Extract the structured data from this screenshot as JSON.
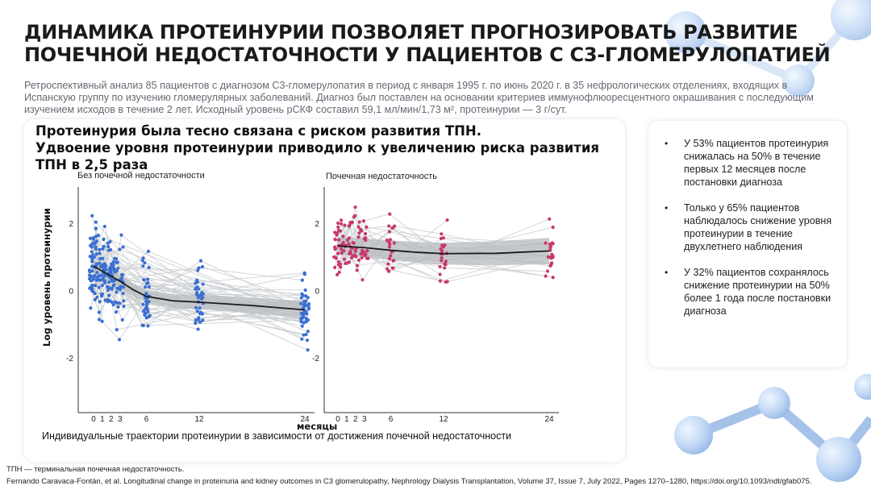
{
  "slide": {
    "title_line1": "ДИНАМИКА ПРОТЕИНУРИИ ПОЗВОЛЯЕТ ПРОГНОЗИРОВАТЬ РАЗВИТИЕ",
    "title_line2": "ПОЧЕЧНОЙ НЕДОСТАТОЧНОСТИ У ПАЦИЕНТОВ С С3-ГЛОМЕРУЛОПАТИЕЙ",
    "subtitle": "Ретроспективный анализ 85 пациентов с диагнозом С3-гломерулопатия в период с января 1995 г. по июнь 2020 г. в 35 нефрологических отделениях, входящих в Испанскую группу по изучению гломерулярных заболеваний. Диагноз был поставлен на основании критериев иммунофлюоресцентного окрашивания с последующим изучением исходов в течение 2 лет. Исходный уровень рСКФ составил 59,1 мл/мин/1,73 м², протеинурии — 3 г/сут.",
    "headline_line1": "Протеинурия была тесно связана с риском развития ТПН.",
    "headline_line2": "Удвоение уровня протеинурии приводило к увеличению риска развития",
    "headline_line3": "ТПН в 2,5 раза",
    "caption": "Индивидуальные траектории протеинурии в зависимости от достижения почечной недостаточности",
    "footnote": "ТПН — терминальная почечная недостаточность.",
    "reference": "Fernando Caravaca-Fontán, et al. Longitudinal change in proteinuria and kidney outcomes in C3 glomerulopathy, Nephrology Dialysis Transplantation, Volume 37, Issue 7, July 2022, Pages 1270–1280, https://doi.org/10.1093/ndt/gfab075.",
    "bullets": [
      "У 53% пациентов протеинурия снижалась на 50% в течение первых 12 месяцев после постановки диагноза",
      "Только у 65% пациентов наблюдалось снижение уровня протеинурии в течение двухлетнего наблюдения",
      "У 32% пациентов сохранялось снижение протеинурии на 50% более 1 года после постановки диагноза"
    ]
  },
  "chart_data": {
    "type": "scatter",
    "ylabel": "Log  уровень протеинурии",
    "xlabel": "месяцы",
    "x_ticks": [
      0,
      1,
      2,
      3,
      6,
      12,
      24
    ],
    "y_ticks": [
      2,
      0,
      -2
    ],
    "ylim": [
      -3.6,
      3.1
    ],
    "colors": {
      "no_kf": "#3b6fd1",
      "kf": "#c8386b",
      "trajectory": "#c9cccf",
      "band": "#b7bbbf",
      "trend": "#1a1a1a"
    },
    "panels": [
      {
        "name": "Без почечной недостаточности",
        "color": "#3b6fd1",
        "trend": [
          {
            "x": 0,
            "y": 0.75
          },
          {
            "x": 1,
            "y": 0.6
          },
          {
            "x": 2,
            "y": 0.45
          },
          {
            "x": 3,
            "y": 0.3
          },
          {
            "x": 4.5,
            "y": 0.05
          },
          {
            "x": 6,
            "y": -0.15
          },
          {
            "x": 9,
            "y": -0.28
          },
          {
            "x": 12,
            "y": -0.32
          },
          {
            "x": 18,
            "y": -0.42
          },
          {
            "x": 24,
            "y": -0.55
          }
        ]
      },
      {
        "name": "Почечная недостаточность",
        "color": "#c8386b",
        "trend": [
          {
            "x": 0,
            "y": 1.35
          },
          {
            "x": 3,
            "y": 1.3
          },
          {
            "x": 6,
            "y": 1.22
          },
          {
            "x": 9,
            "y": 1.16
          },
          {
            "x": 12,
            "y": 1.12
          },
          {
            "x": 18,
            "y": 1.13
          },
          {
            "x": 24,
            "y": 1.2
          }
        ]
      }
    ]
  }
}
